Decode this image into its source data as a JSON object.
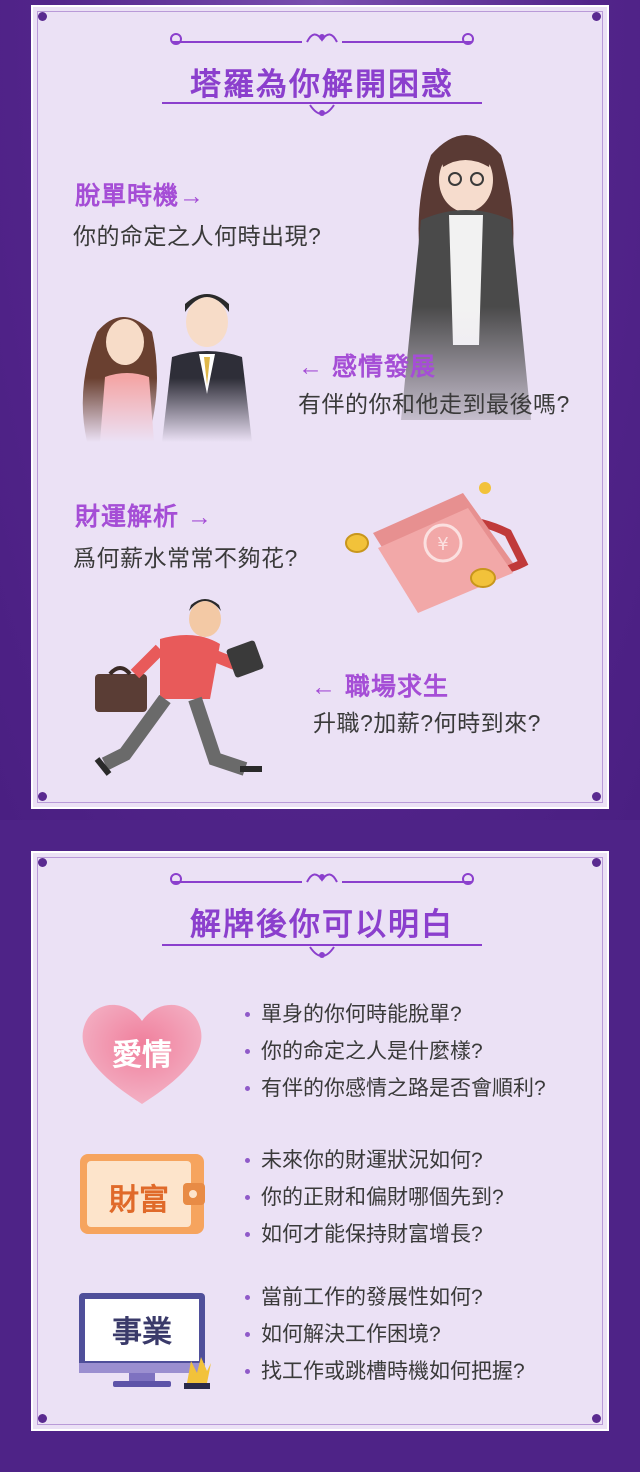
{
  "section1": {
    "title": "塔羅為你解開困惑",
    "topics": [
      {
        "title": "脫單時機→",
        "question": "你的命定之人何時出現?"
      },
      {
        "title": "← 感情發展",
        "question": "有伴的你和他走到最後嗎?"
      },
      {
        "title": "財運解析 →",
        "question": "爲何薪水常常不夠花?"
      },
      {
        "title": "← 職場求生",
        "question": "升職?加薪?何時到來?"
      }
    ]
  },
  "section2": {
    "title": "解牌後你可以明白",
    "groups": [
      {
        "icon_name": "heart-icon",
        "label": "愛情",
        "items": [
          "單身的你何時能脫單?",
          "你的命定之人是什麼樣?",
          "有伴的你感情之路是否會順利?"
        ]
      },
      {
        "icon_name": "wallet-icon",
        "label": "財富",
        "items": [
          "未來你的財運狀況如何?",
          "你的正財和偏財哪個先到?",
          "如何才能保持財富增長?"
        ]
      },
      {
        "icon_name": "monitor-icon",
        "label": "事業",
        "items": [
          "當前工作的發展性如何?",
          "如何解決工作困境?",
          "找工作或跳槽時機如何把握?"
        ]
      }
    ]
  },
  "colors": {
    "background": "#4e2287",
    "card": "#ebe1f5",
    "accent": "#a54ed6",
    "title": "#8b3fcd"
  }
}
